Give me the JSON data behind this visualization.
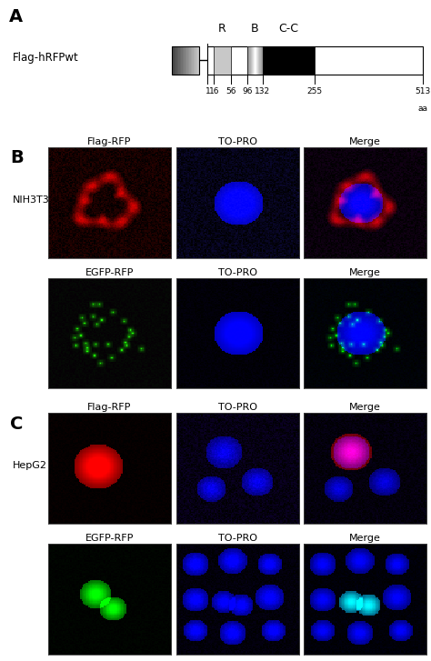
{
  "panel_A_label": "A",
  "panel_B_label": "B",
  "panel_C_label": "C",
  "construct_label": "Flag-hRFPwt",
  "domain_labels": [
    "R",
    "B",
    "C-C"
  ],
  "aa_labels": [
    "1",
    "16",
    "56",
    "96",
    "132",
    "255",
    "513"
  ],
  "aa_label_extra": "aa",
  "row1_labels": [
    "Flag-RFP",
    "TO-PRO",
    "Merge"
  ],
  "row2_labels": [
    "EGFP-RFP",
    "TO-PRO",
    "Merge"
  ],
  "cell_label_B": "NIH3T3",
  "cell_label_C": "HepG2",
  "bg_color": "#ffffff",
  "text_color": "#000000",
  "fontsize_panel": 14,
  "fontsize_label": 8,
  "fontsize_construct": 8.5,
  "fontsize_domain": 9,
  "fontsize_aa": 6.5
}
